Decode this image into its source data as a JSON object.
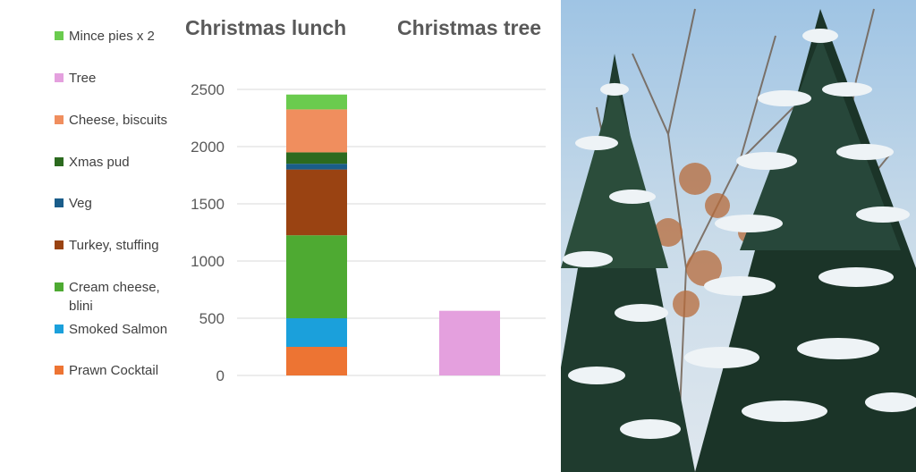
{
  "chart_data": {
    "type": "bar",
    "stacked": true,
    "categories": [
      "Christmas lunch",
      "Christmas tree"
    ],
    "series": [
      {
        "name": "Prawn Cocktail",
        "color": "#ED7433",
        "values": [
          250,
          0
        ]
      },
      {
        "name": "Smoked Salmon",
        "color": "#1BA0DB",
        "values": [
          250,
          0
        ]
      },
      {
        "name": "Cream cheese, blini",
        "color": "#4EAA32",
        "values": [
          725,
          0
        ]
      },
      {
        "name": "Turkey, stuffing",
        "color": "#9A4312",
        "values": [
          575,
          0
        ]
      },
      {
        "name": "Veg",
        "color": "#1A5D8A",
        "values": [
          50,
          0
        ]
      },
      {
        "name": "Xmas pud",
        "color": "#2C6A1F",
        "values": [
          100,
          0
        ]
      },
      {
        "name": "Cheese, biscuits",
        "color": "#F08E5E",
        "values": [
          375,
          0
        ]
      },
      {
        "name": "Tree",
        "color": "#E4A0DE",
        "values": [
          0,
          565
        ]
      },
      {
        "name": "Mince pies x 2",
        "color": "#6ACB4E",
        "values": [
          130,
          0
        ]
      }
    ],
    "ylim": [
      0,
      2500
    ],
    "yticks": [
      0,
      500,
      1000,
      1500,
      2000,
      2500
    ],
    "grid": true,
    "legend_position": "left",
    "xlabel": "",
    "ylabel": ""
  },
  "legend_order": [
    8,
    7,
    6,
    5,
    4,
    3,
    2,
    1,
    0
  ],
  "photo": {
    "description_icon": "snowy-pine-trees-photo"
  }
}
